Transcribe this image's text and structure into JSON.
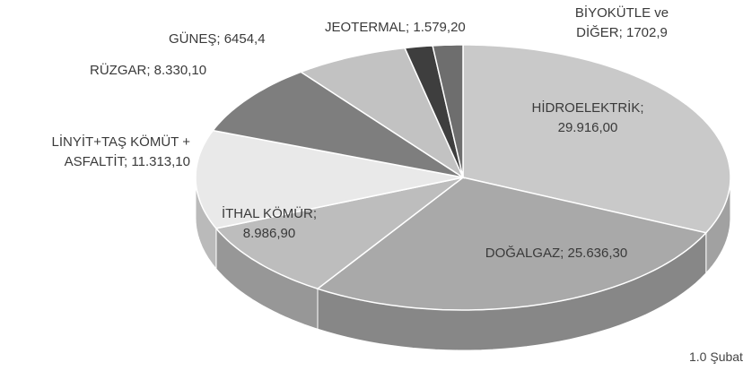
{
  "chart_data": {
    "type": "pie3d",
    "categories": [
      "HİDROELEKTRİK;",
      "DOĞALGAZ;",
      "İTHAL KÖMÜR;",
      "LİNYİT+TAŞ KÖMÜT + ASFALTİT;",
      "RÜZGAR;",
      "GÜNEŞ;",
      "JEOTERMAL;",
      "BİYOKÜTLE ve DİĞER;"
    ],
    "values": [
      29916.0,
      25636.3,
      8986.9,
      11313.1,
      8330.1,
      6454.4,
      1579.2,
      1702.9
    ],
    "value_labels": [
      "29.916,00",
      "25.636,30",
      "8.986,90",
      "11.313,10",
      "8.330,10",
      "6454,4",
      "1.579,20",
      "1702,9"
    ],
    "colors": [
      "#c9c9c9",
      "#a9a9a9",
      "#bdbdbd",
      "#e9e9e9",
      "#7e7e7e",
      "#c2c2c2",
      "#3e3e3e",
      "#6e6e6e"
    ],
    "footer": "1.0 Şubat"
  }
}
